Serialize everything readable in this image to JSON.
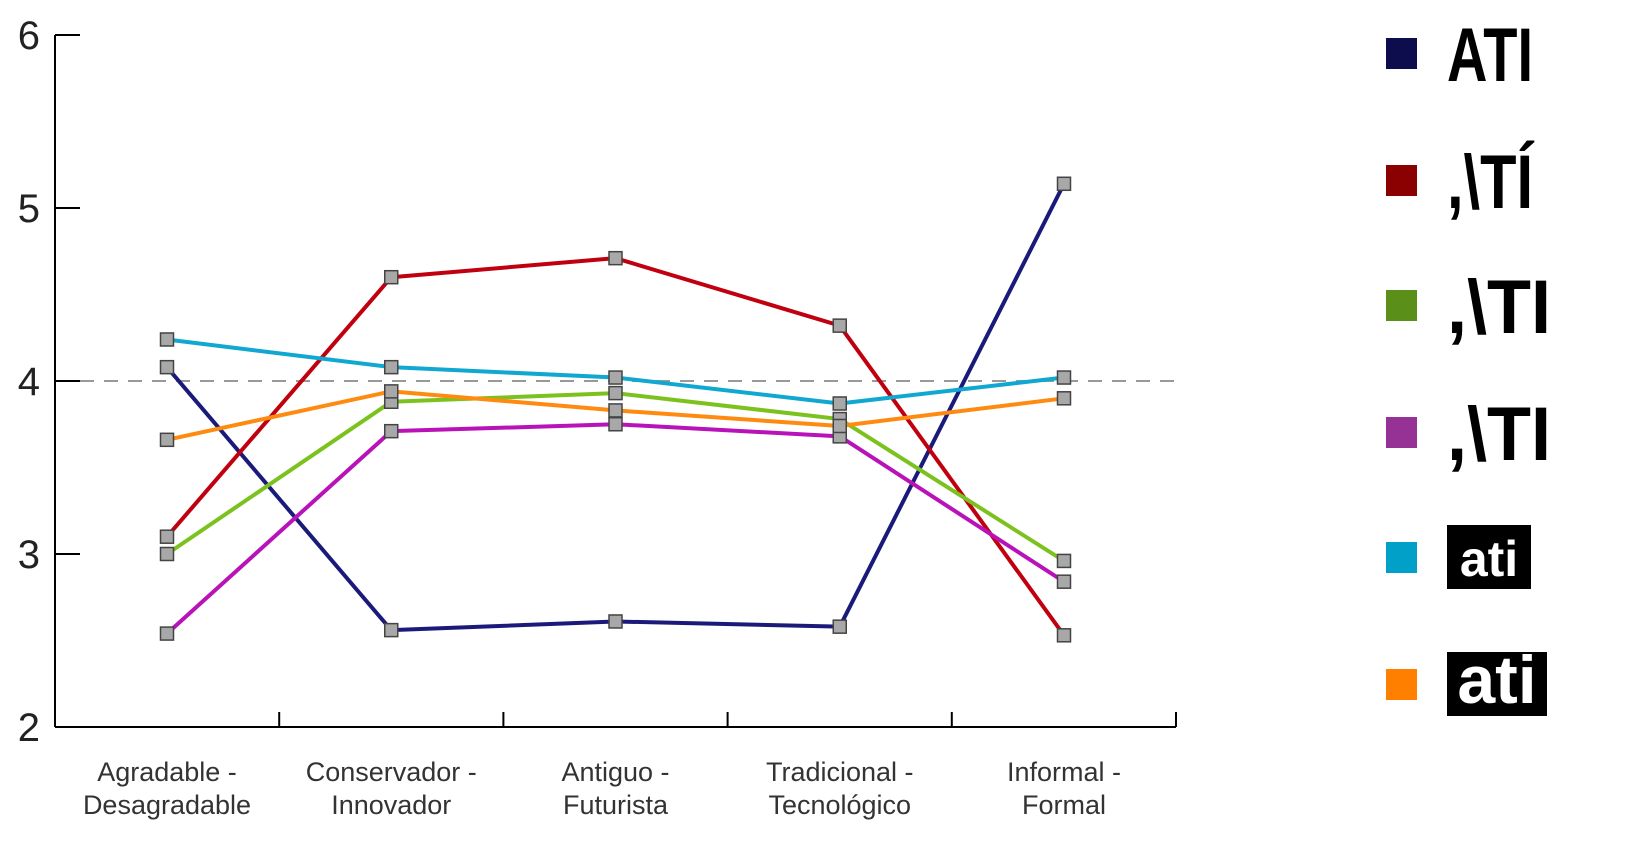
{
  "chart_data": {
    "type": "line",
    "categories": [
      [
        "Agradable -",
        "Desagradable"
      ],
      [
        "Conservador -",
        "Innovador"
      ],
      [
        "Antiguo -",
        "Futurista"
      ],
      [
        "Tradicional -",
        "Tecnológico"
      ],
      [
        "Informal -",
        "Formal"
      ]
    ],
    "ylim": [
      2,
      6
    ],
    "yticks": [
      "2",
      "3",
      "4",
      "5",
      "6"
    ],
    "reference_line": 4,
    "grid": false,
    "legend_position": "right",
    "series": [
      {
        "name": "ATI",
        "color": "#0d0d4d",
        "line_color": "#1a1a7a",
        "values": [
          4.08,
          2.56,
          2.61,
          2.58,
          5.14
        ],
        "legend_style": "bold-caps"
      },
      {
        "name": ",\\TÍ",
        "color": "#8b0000",
        "line_color": "#c0000e",
        "values": [
          3.1,
          4.6,
          4.71,
          4.32,
          2.53
        ],
        "legend_style": "bold-caps"
      },
      {
        "name": ",\\TI",
        "color": "#5a8f1a",
        "line_color": "#7cc21f",
        "values": [
          3.0,
          3.88,
          3.93,
          3.78,
          2.96
        ],
        "legend_style": "thin-caps"
      },
      {
        "name": ",\\TI",
        "color": "#963296",
        "line_color": "#b812b8",
        "values": [
          2.54,
          3.71,
          3.75,
          3.68,
          2.84
        ],
        "legend_style": "thin-caps"
      },
      {
        "name": "ati",
        "color": "#00a0c8",
        "line_color": "#10a8d0",
        "values": [
          4.24,
          4.08,
          4.02,
          3.87,
          4.02
        ],
        "legend_style": "boxed-lower"
      },
      {
        "name": "ati",
        "color": "#ff8000",
        "line_color": "#ff8a10",
        "values": [
          3.66,
          3.94,
          3.83,
          3.74,
          3.9
        ],
        "legend_style": "boxed-bold-lower"
      }
    ]
  }
}
